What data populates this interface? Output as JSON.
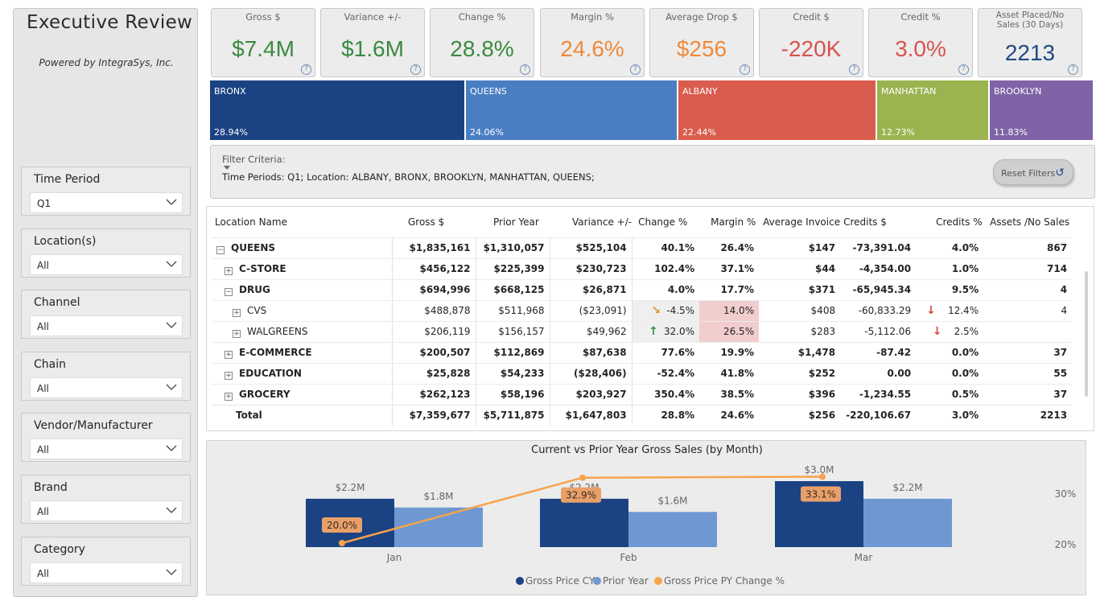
{
  "header": {
    "title": "Executive Review",
    "powered_by": "Powered by IntegraSys, Inc."
  },
  "slicers": [
    {
      "label": "Time Period",
      "value": "Q1"
    },
    {
      "label": "Location(s)",
      "value": "All"
    },
    {
      "label": "Channel",
      "value": "All"
    },
    {
      "label": "Chain",
      "value": "All"
    },
    {
      "label": "Vendor/Manufacturer",
      "value": "All"
    },
    {
      "label": "Brand",
      "value": "All"
    },
    {
      "label": "Category",
      "value": "All"
    }
  ],
  "kpis": [
    {
      "label": "Gross $",
      "value": "$7.4M",
      "color": "#3a8a40"
    },
    {
      "label": "Variance +/-",
      "value": "$1.6M",
      "color": "#3a8a40"
    },
    {
      "label": "Change %",
      "value": "28.8%",
      "color": "#3a8a40"
    },
    {
      "label": "Margin %",
      "value": "24.6%",
      "color": "#f08a3c"
    },
    {
      "label": "Average Drop $",
      "value": "$256",
      "color": "#f08a3c"
    },
    {
      "label": "Credit $",
      "value": "-220K",
      "color": "#d9534f"
    },
    {
      "label": "Credit %",
      "value": "3.0%",
      "color": "#d9534f"
    },
    {
      "label": "Asset Placed/No Sales (30 Days)",
      "value": "2213",
      "color": "#1f4a86"
    }
  ],
  "treemap": [
    {
      "name": "BRONX",
      "pct": "28.94%",
      "share": 28.94,
      "color": "#1b4283"
    },
    {
      "name": "QUEENS",
      "pct": "24.06%",
      "share": 24.06,
      "color": "#4a7ec2"
    },
    {
      "name": "ALBANY",
      "pct": "22.44%",
      "share": 22.44,
      "color": "#d95c4e"
    },
    {
      "name": "MANHATTAN",
      "pct": "12.73%",
      "share": 12.73,
      "color": "#9bb450"
    },
    {
      "name": "BROOKLYN",
      "pct": "11.83%",
      "share": 11.83,
      "color": "#7f63a6"
    }
  ],
  "filter": {
    "title": "Filter Criteria:",
    "criteria": "Time Periods: Q1; Location: ALBANY, BRONX, BROOKLYN, MANHATTAN, QUEENS;",
    "reset_label": "Reset Filters"
  },
  "table": {
    "columns": [
      "Location Name",
      "Gross $",
      "Prior Year",
      "Variance +/-",
      "Change %",
      "Margin %",
      "Average Invoice",
      "Credits $",
      "Credits %",
      "Assets /No Sales"
    ],
    "rows": [
      {
        "name": "QUEENS",
        "expand": "−",
        "gross": "$1,835,161",
        "prior": "$1,310,057",
        "variance": "$525,104",
        "change": "40.1%",
        "margin": "26.4%",
        "avg": "$147",
        "credits": "-73,391.04",
        "credits_pct": "4.0%",
        "assets": "867"
      },
      {
        "name": "C-STORE",
        "expand": "+",
        "gross": "$456,122",
        "prior": "$225,399",
        "variance": "$230,723",
        "change": "102.4%",
        "margin": "37.1%",
        "avg": "$44",
        "credits": "-4,354.00",
        "credits_pct": "1.0%",
        "assets": "714"
      },
      {
        "name": "DRUG",
        "expand": "−",
        "gross": "$694,996",
        "prior": "$668,125",
        "variance": "$26,871",
        "change": "4.0%",
        "margin": "17.7%",
        "avg": "$371",
        "credits": "-65,945.34",
        "credits_pct": "9.5%",
        "assets": "4"
      },
      {
        "name": "CVS",
        "expand": "+",
        "gross": "$488,878",
        "prior": "$511,968",
        "variance": "($23,091)",
        "change": "-4.5%",
        "margin": "14.0%",
        "avg": "$408",
        "credits": "-60,833.29",
        "credits_pct": "12.4%",
        "assets": "4"
      },
      {
        "name": "WALGREENS",
        "expand": "+",
        "gross": "$206,119",
        "prior": "$156,157",
        "variance": "$49,962",
        "change": "32.0%",
        "margin": "26.5%",
        "avg": "$283",
        "credits": "-5,112.06",
        "credits_pct": "2.5%",
        "assets": ""
      },
      {
        "name": "E-COMMERCE",
        "expand": "+",
        "gross": "$200,507",
        "prior": "$112,869",
        "variance": "$87,638",
        "change": "77.6%",
        "margin": "19.9%",
        "avg": "$1,478",
        "credits": "-87.42",
        "credits_pct": "0.0%",
        "assets": "37"
      },
      {
        "name": "EDUCATION",
        "expand": "+",
        "gross": "$25,828",
        "prior": "$54,233",
        "variance": "($28,406)",
        "change": "-52.4%",
        "margin": "41.8%",
        "avg": "$252",
        "credits": "0.00",
        "credits_pct": "0.0%",
        "assets": "55"
      },
      {
        "name": "GROCERY",
        "expand": "+",
        "gross": "$262,123",
        "prior": "$58,196",
        "variance": "$203,927",
        "change": "350.4%",
        "margin": "38.5%",
        "avg": "$396",
        "credits": "-1,234.55",
        "credits_pct": "0.5%",
        "assets": "37"
      }
    ],
    "total": {
      "name": "Total",
      "gross": "$7,359,677",
      "prior": "$5,711,875",
      "variance": "$1,647,803",
      "change": "28.8%",
      "margin": "24.6%",
      "avg": "$256",
      "credits": "-220,106.67",
      "credits_pct": "3.0%",
      "assets": "2213"
    }
  },
  "chart_data": {
    "type": "bar",
    "title": "Current vs Prior Year Gross Sales (by Month)",
    "categories": [
      "Jan",
      "Feb",
      "Mar"
    ],
    "series": [
      {
        "name": "Gross Price CY",
        "values": [
          2.2,
          2.2,
          3.0
        ],
        "labels": [
          "$2.2M",
          "$2.2M",
          "$3.0M"
        ],
        "color": "#1b4283"
      },
      {
        "name": "Prior Year",
        "values": [
          1.8,
          1.6,
          2.2
        ],
        "labels": [
          "$1.8M",
          "$1.6M",
          "$2.2M"
        ],
        "color": "#6f98d2"
      }
    ],
    "line": {
      "name": "Gross Price PY Change %",
      "values": [
        20.0,
        32.9,
        33.1
      ],
      "labels": [
        "20.0%",
        "32.9%",
        "33.1%"
      ],
      "color": "#f6a34b"
    },
    "y2_ticks": [
      "30%",
      "20%"
    ]
  }
}
